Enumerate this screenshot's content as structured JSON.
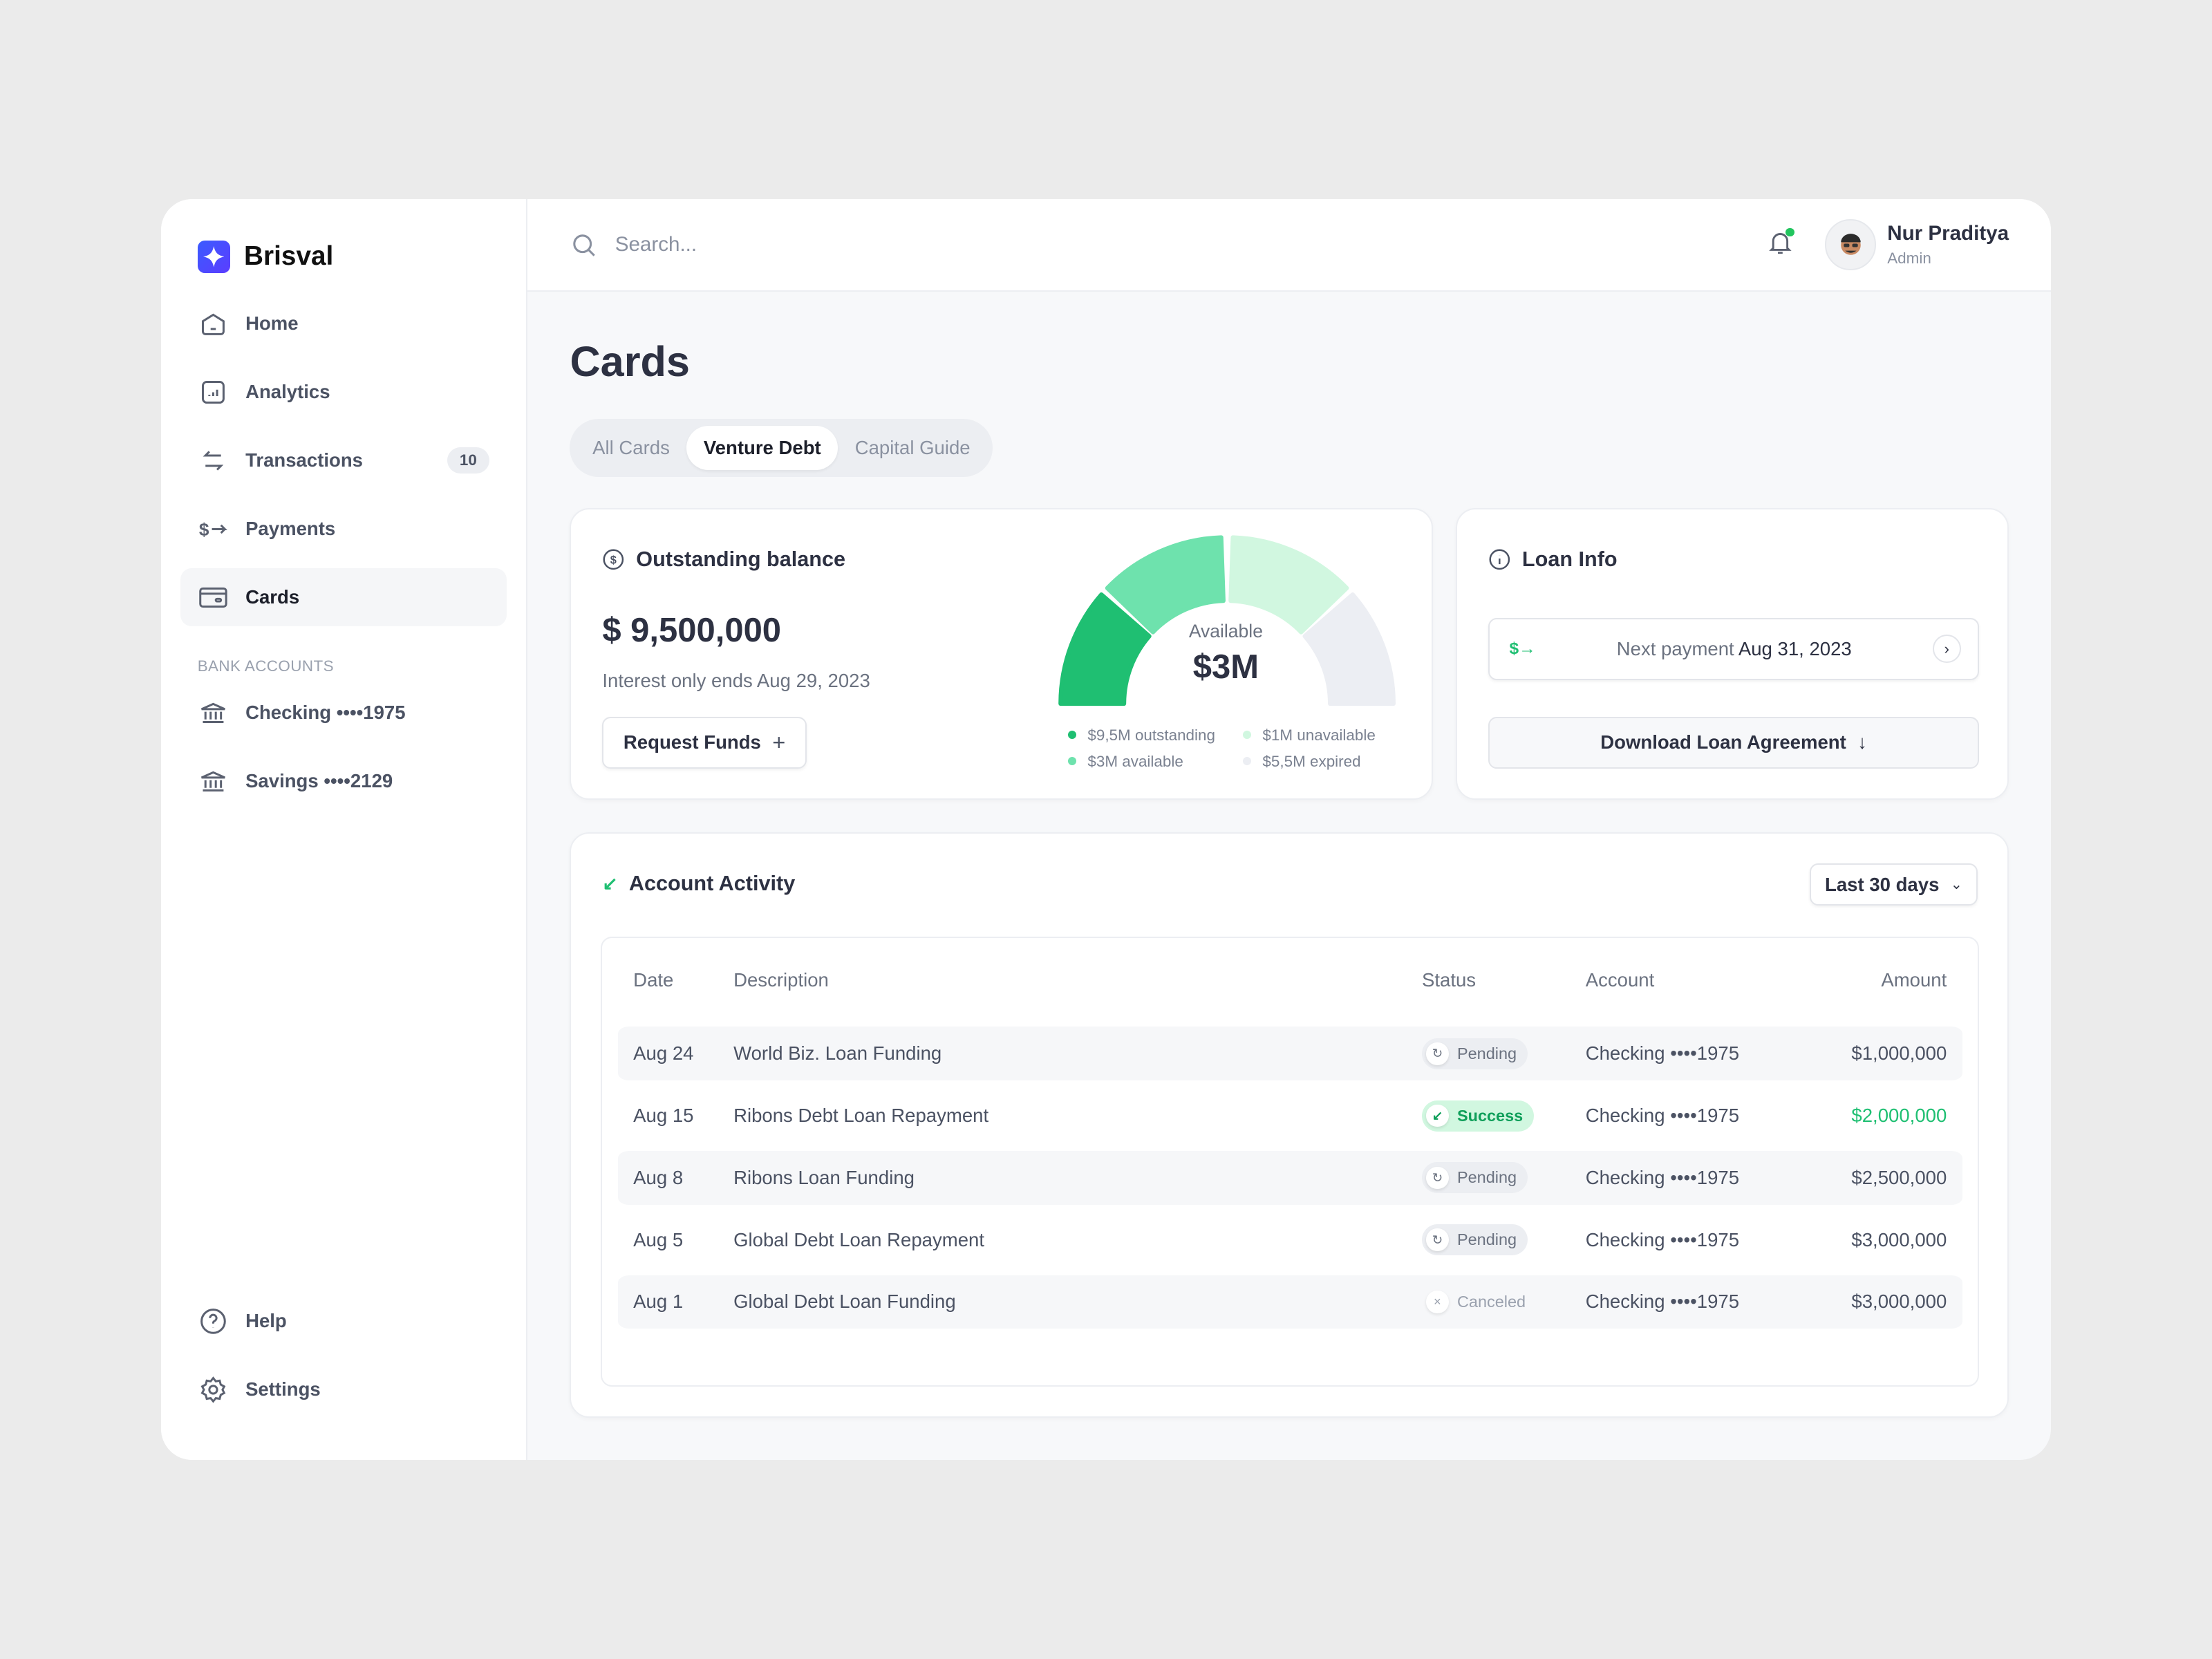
{
  "app": {
    "name": "Brisval",
    "brand_color": "#4353ff"
  },
  "sidebar": {
    "items": [
      {
        "label": "Home",
        "icon": "home-icon"
      },
      {
        "label": "Analytics",
        "icon": "chart-icon"
      },
      {
        "label": "Transactions",
        "icon": "transfer-icon",
        "badge": "10"
      },
      {
        "label": "Payments",
        "icon": "payment-icon"
      },
      {
        "label": "Cards",
        "icon": "card-icon",
        "active": true
      }
    ],
    "section_label": "BANK ACCOUNTS",
    "accounts": [
      {
        "label": "Checking ••••1975"
      },
      {
        "label": "Savings ••••2129"
      }
    ],
    "bottom": [
      {
        "label": "Help"
      },
      {
        "label": "Settings"
      }
    ]
  },
  "topbar": {
    "search_placeholder": "Search...",
    "user": {
      "name": "Nur Praditya",
      "role": "Admin"
    },
    "notification_dot_color": "#22c55e"
  },
  "page": {
    "title": "Cards",
    "tabs": [
      {
        "label": "All Cards"
      },
      {
        "label": "Venture Debt",
        "active": true
      },
      {
        "label": "Capital Guide"
      }
    ]
  },
  "balance": {
    "title": "Outstanding balance",
    "amount": "$ 9,500,000",
    "note": "Interest only ends Aug 29, 2023",
    "button": "Request Funds",
    "gauge": {
      "label": "Available",
      "value": "$3M",
      "segments": [
        {
          "label": "$9,5M outstanding",
          "color": "#1fbf72"
        },
        {
          "label": "$3M available",
          "color": "#6ee2ad"
        },
        {
          "label": "$1M unavailable",
          "color": "#d1f7e0"
        },
        {
          "label": "$5,5M expired",
          "color": "#eceef3"
        }
      ]
    }
  },
  "loan": {
    "title": "Loan Info",
    "next_payment_label": "Next payment",
    "next_payment_date": "Aug 31, 2023",
    "download": "Download Loan Agreement"
  },
  "activity": {
    "title": "Account Activity",
    "range": "Last 30 days",
    "columns": [
      "Date",
      "Description",
      "Status",
      "Account",
      "Amount"
    ],
    "rows": [
      {
        "date": "Aug 24",
        "description": "World Biz. Loan Funding",
        "status": "Pending",
        "account": "Checking ••••1975",
        "amount": "$1,000,000"
      },
      {
        "date": "Aug 15",
        "description": "Ribons Debt Loan Repayment",
        "status": "Success",
        "account": "Checking ••••1975",
        "amount": "$2,000,000"
      },
      {
        "date": "Aug 8",
        "description": "Ribons Loan Funding",
        "status": "Pending",
        "account": "Checking ••••1975",
        "amount": "$2,500,000"
      },
      {
        "date": "Aug 5",
        "description": "Global Debt Loan Repayment",
        "status": "Pending",
        "account": "Checking ••••1975",
        "amount": "$3,000,000"
      },
      {
        "date": "Aug 1",
        "description": "Global Debt Loan Funding",
        "status": "Canceled",
        "account": "Checking ••••1975",
        "amount": "$3,000,000"
      }
    ]
  }
}
